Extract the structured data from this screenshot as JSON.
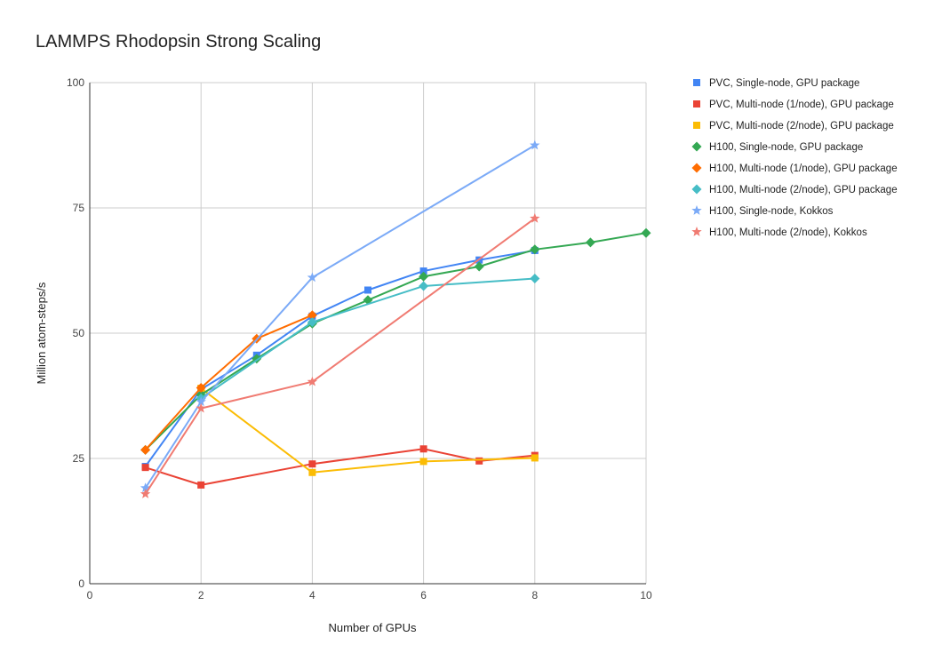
{
  "chart_data": {
    "type": "line",
    "title": "LAMMPS Rhodopsin Strong Scaling",
    "xlabel": "Number of GPUs",
    "ylabel": "Million atom-steps/s",
    "xlim": [
      0,
      10
    ],
    "ylim": [
      0,
      100
    ],
    "x_ticks": [
      0,
      2,
      4,
      6,
      8,
      10
    ],
    "y_ticks": [
      0,
      25,
      50,
      75,
      100
    ],
    "grid": true,
    "legend_position": "right",
    "series": [
      {
        "name": "PVC, Single-node, GPU package",
        "color": "#4285F4",
        "marker": "square",
        "points": [
          [
            1,
            23.4
          ],
          [
            2,
            38.8
          ],
          [
            3,
            45.6
          ],
          [
            4,
            53.4
          ],
          [
            5,
            58.6
          ],
          [
            6,
            62.4
          ],
          [
            7,
            64.6
          ],
          [
            8,
            66.5
          ]
        ]
      },
      {
        "name": "PVC, Multi-node (1/node), GPU package",
        "color": "#EA4335",
        "marker": "square",
        "points": [
          [
            1,
            23.2
          ],
          [
            2,
            19.7
          ],
          [
            4,
            23.9
          ],
          [
            6,
            26.9
          ],
          [
            7,
            24.5
          ],
          [
            8,
            25.6
          ]
        ]
      },
      {
        "name": "PVC, Multi-node (2/node), GPU package",
        "color": "#FBBC04",
        "marker": "square",
        "points": [
          [
            2,
            39.0
          ],
          [
            4,
            22.2
          ],
          [
            6,
            24.4
          ],
          [
            8,
            25.1
          ]
        ]
      },
      {
        "name": "H100, Single-node, GPU package",
        "color": "#34A853",
        "marker": "diamond",
        "points": [
          [
            1,
            26.7
          ],
          [
            2,
            37.7
          ],
          [
            3,
            44.9
          ],
          [
            4,
            51.9
          ],
          [
            5,
            56.6
          ],
          [
            6,
            61.3
          ],
          [
            7,
            63.3
          ],
          [
            8,
            66.7
          ],
          [
            9,
            68.1
          ],
          [
            10,
            70.0
          ]
        ]
      },
      {
        "name": "H100, Multi-node (1/node), GPU package",
        "color": "#FF6D01",
        "marker": "diamond",
        "points": [
          [
            1,
            26.7
          ],
          [
            2,
            39.1
          ],
          [
            3,
            48.9
          ],
          [
            4,
            53.6
          ]
        ]
      },
      {
        "name": "H100, Multi-node (2/node), GPU package",
        "color": "#46BDC6",
        "marker": "diamond",
        "points": [
          [
            2,
            37.0
          ],
          [
            4,
            52.2
          ],
          [
            6,
            59.4
          ],
          [
            8,
            60.9
          ]
        ]
      },
      {
        "name": "H100, Single-node, Kokkos",
        "color": "#7BAAF7",
        "marker": "star",
        "points": [
          [
            1,
            19.1
          ],
          [
            2,
            36.3
          ],
          [
            4,
            61.1
          ],
          [
            8,
            87.5
          ]
        ]
      },
      {
        "name": "H100, Multi-node (2/node), Kokkos",
        "color": "#F07B72",
        "marker": "star",
        "points": [
          [
            1,
            17.9
          ],
          [
            2,
            35.0
          ],
          [
            4,
            40.3
          ],
          [
            8,
            72.9
          ]
        ]
      }
    ]
  }
}
